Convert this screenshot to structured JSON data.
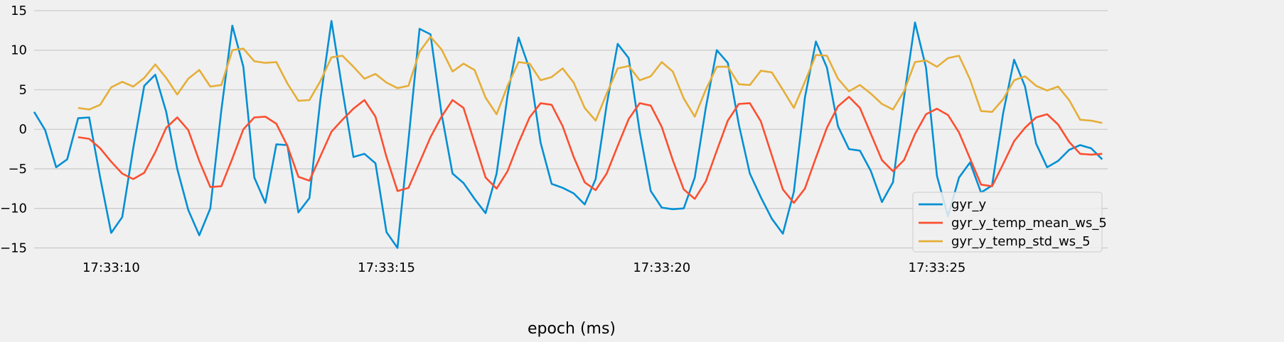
{
  "chart_data": {
    "type": "line",
    "xlabel": "epoch (ms)",
    "ylabel": "",
    "x_range": [
      "17:33:08.6",
      "17:33:28.1"
    ],
    "ylim": [
      -15.5,
      15
    ],
    "yticks": [
      -15,
      -10,
      -5,
      0,
      5,
      10,
      15
    ],
    "xticks": [
      "17:33:10",
      "17:33:15",
      "17:33:20",
      "17:33:25"
    ],
    "grid": "horizontal",
    "legend_position": "bottom-right",
    "series": [
      {
        "name": "gyr_y",
        "color": "#008fd5",
        "t0": "17:33:08.6",
        "dt": 0.2,
        "values": [
          2.2,
          -0.1,
          -4.8,
          -3.8,
          1.4,
          1.5,
          -6.1,
          -13.1,
          -11.1,
          -2.4,
          5.5,
          6.9,
          2.2,
          -5.0,
          -10.2,
          -13.4,
          -10.0,
          2.4,
          13.1,
          7.9,
          -6.1,
          -9.3,
          -1.9,
          -2.0,
          -10.5,
          -8.7,
          3.8,
          13.7,
          5.0,
          -3.5,
          -3.1,
          -4.3,
          -13.0,
          -15.0,
          -1.3,
          12.7,
          12.0,
          2.0,
          -5.6,
          -6.8,
          -8.8,
          -10.6,
          -5.6,
          4.3,
          11.6,
          7.6,
          -1.7,
          -6.9,
          -7.4,
          -8.1,
          -9.5,
          -6.3,
          3.1,
          10.8,
          9.0,
          -0.3,
          -7.8,
          -9.9,
          -10.1,
          -10.0,
          -6.1,
          2.7,
          10.0,
          8.4,
          0.6,
          -5.6,
          -8.6,
          -11.3,
          -13.2,
          -7.9,
          4.0,
          11.1,
          7.8,
          0.4,
          -2.5,
          -2.7,
          -5.3,
          -9.2,
          -6.7,
          4.0,
          13.5,
          7.8,
          -5.9,
          -11.0,
          -6.1,
          -4.2,
          -8.0,
          -7.1,
          2.0,
          8.8,
          5.4,
          -1.8,
          -4.8,
          -4.0,
          -2.6,
          -2.0,
          -2.4,
          -3.8
        ]
      },
      {
        "name": "gyr_y_temp_mean_ws_5",
        "color": "#fc4f30",
        "t0": "17:33:09.4",
        "dt": 0.2,
        "values": [
          -1.0,
          -1.2,
          -2.4,
          -4.1,
          -5.6,
          -6.3,
          -5.5,
          -2.9,
          0.2,
          1.5,
          -0.1,
          -4.0,
          -7.3,
          -7.2,
          -3.7,
          0.0,
          1.5,
          1.6,
          0.7,
          -2.1,
          -6.0,
          -6.5,
          -3.4,
          -0.3,
          1.2,
          2.6,
          3.7,
          1.6,
          -3.5,
          -7.8,
          -7.4,
          -4.2,
          -1.0,
          1.6,
          3.7,
          2.7,
          -1.7,
          -6.1,
          -7.5,
          -5.3,
          -1.7,
          1.5,
          3.3,
          3.1,
          0.4,
          -3.5,
          -6.7,
          -7.7,
          -5.6,
          -2.1,
          1.3,
          3.3,
          3.0,
          0.3,
          -3.9,
          -7.6,
          -8.8,
          -6.6,
          -2.7,
          1.1,
          3.2,
          3.3,
          1.0,
          -3.3,
          -7.6,
          -9.3,
          -7.5,
          -3.6,
          0.2,
          2.9,
          4.1,
          2.7,
          -0.6,
          -3.9,
          -5.3,
          -3.9,
          -0.6,
          1.9,
          2.6,
          1.8,
          -0.4,
          -3.7,
          -7.0,
          -7.2,
          -4.4,
          -1.5,
          0.2,
          1.5,
          1.9,
          0.6,
          -1.6,
          -3.1,
          -3.2,
          -3.1
        ]
      },
      {
        "name": "gyr_y_temp_std_ws_5",
        "color": "#e5ae38",
        "t0": "17:33:09.4",
        "dt": 0.2,
        "values": [
          2.7,
          2.5,
          3.1,
          5.3,
          6.0,
          5.4,
          6.5,
          8.2,
          6.5,
          4.4,
          6.4,
          7.5,
          5.4,
          5.6,
          10.0,
          10.2,
          8.6,
          8.4,
          8.5,
          5.8,
          3.6,
          3.7,
          6.1,
          9.1,
          9.3,
          7.9,
          6.4,
          7.0,
          5.9,
          5.2,
          5.5,
          9.8,
          11.7,
          10.1,
          7.3,
          8.3,
          7.5,
          4.0,
          1.9,
          5.5,
          8.5,
          8.3,
          6.2,
          6.6,
          7.7,
          5.9,
          2.7,
          1.1,
          4.5,
          7.7,
          8.0,
          6.2,
          6.7,
          8.5,
          7.3,
          3.9,
          1.6,
          5.0,
          7.9,
          7.9,
          5.7,
          5.6,
          7.4,
          7.2,
          5.0,
          2.7,
          6.0,
          9.4,
          9.3,
          6.4,
          4.8,
          5.6,
          4.5,
          3.2,
          2.5,
          4.8,
          8.5,
          8.7,
          7.9,
          9.0,
          9.3,
          6.3,
          2.3,
          2.2,
          3.8,
          6.2,
          6.7,
          5.5,
          4.9,
          5.4,
          3.7,
          1.2,
          1.1,
          0.8
        ]
      }
    ]
  }
}
